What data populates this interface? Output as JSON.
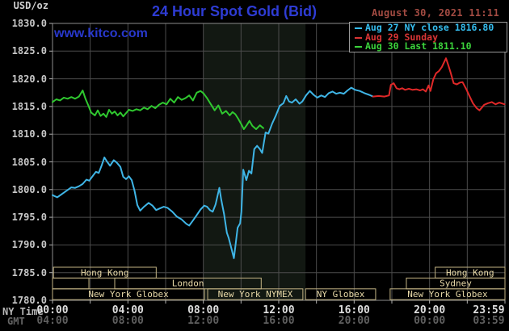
{
  "header": {
    "unit_label": "USD/oz",
    "title": "24 Hour Spot Gold (Bid)",
    "datetime": "August 30, 2021 11:11",
    "watermark": "www.kitco.com"
  },
  "legend": {
    "items": [
      {
        "label": "Aug 27 NY close 1816.80",
        "color": "#35bdee"
      },
      {
        "label": "Aug 29 Sunday",
        "color": "#d93535"
      },
      {
        "label": "Aug 30 Last 1811.10",
        "color": "#3bd23b"
      }
    ]
  },
  "axes": {
    "ny_time_label": "NY Time",
    "gmt_label": "GMT",
    "ny_ticks": [
      "00:00",
      "04:00",
      "08:00",
      "12:00",
      "16:00",
      "20:00",
      "23:59"
    ],
    "gmt_ticks": [
      "04:00",
      "08:00",
      "12:00",
      "16:00",
      "20:00",
      "00:00",
      "03:59"
    ],
    "tick_hours": [
      0,
      4,
      8,
      12,
      16,
      20,
      23.983
    ],
    "y_ticks": [
      "1830.0",
      "1825.0",
      "1820.0",
      "1815.0",
      "1810.0",
      "1805.0",
      "1800.0",
      "1795.0",
      "1790.0",
      "1785.0",
      "1780.0"
    ]
  },
  "sessions": {
    "border_color": "#c3b384",
    "text_color": "#e8d9a8",
    "boxes": [
      {
        "row": 0,
        "start": 0.05,
        "end": 5.5,
        "label": "Hong Kong"
      },
      {
        "row": 0,
        "start": 20.3,
        "end": 24,
        "label": "Hong Kong"
      },
      {
        "row": 1,
        "start": 0,
        "end": 1.93,
        "label": ""
      },
      {
        "row": 1,
        "start": 3.3,
        "end": 11.07,
        "label": "London"
      },
      {
        "row": 1,
        "start": 18.77,
        "end": 24,
        "label": "Sydney"
      },
      {
        "row": 2,
        "start": 0,
        "end": 8.06,
        "label": "New York Globex"
      },
      {
        "row": 2,
        "start": 8.23,
        "end": 13.28,
        "label": "New York NYMEX"
      },
      {
        "row": 2,
        "start": 13.42,
        "end": 17.14,
        "label": "NY Globex"
      },
      {
        "row": 2,
        "start": 17.91,
        "end": 24,
        "label": "New York Globex"
      }
    ]
  },
  "colors": {
    "background": "#000000",
    "grid": "#4c4c4c",
    "frame": "#8c8c8c",
    "tick": "#b0b0b0",
    "band": "#121812"
  },
  "chart_data": {
    "type": "line",
    "title": "24 Hour Spot Gold (Bid)",
    "xlabel": "NY Time (hours 00:00-23:59)",
    "ylabel": "USD/oz",
    "ylim": [
      1780,
      1830
    ],
    "x_range_hours": [
      0,
      24
    ],
    "grid": true,
    "gridline_every": {
      "x_hours": 2,
      "y_usd": 5
    },
    "legend_position": "top-right",
    "shaded_band_hours": [
      8.0,
      13.42
    ],
    "series": [
      {
        "name": "Aug 27 NY close 1816.80",
        "color": "#3fb5e6",
        "points": [
          [
            0,
            1799.0
          ],
          [
            0.25,
            1798.6
          ],
          [
            0.5,
            1799.2
          ],
          [
            0.75,
            1799.8
          ],
          [
            1,
            1800.4
          ],
          [
            1.2,
            1800.3
          ],
          [
            1.4,
            1800.6
          ],
          [
            1.6,
            1801.0
          ],
          [
            1.8,
            1801.8
          ],
          [
            1.95,
            1801.6
          ],
          [
            2.1,
            1802.3
          ],
          [
            2.3,
            1803.2
          ],
          [
            2.45,
            1803.0
          ],
          [
            2.6,
            1804.3
          ],
          [
            2.75,
            1805.8
          ],
          [
            2.9,
            1805.0
          ],
          [
            3.05,
            1804.3
          ],
          [
            3.25,
            1805.3
          ],
          [
            3.4,
            1804.9
          ],
          [
            3.6,
            1804.1
          ],
          [
            3.75,
            1802.3
          ],
          [
            3.9,
            1801.9
          ],
          [
            4.05,
            1802.4
          ],
          [
            4.2,
            1801.7
          ],
          [
            4.35,
            1799.8
          ],
          [
            4.5,
            1797.2
          ],
          [
            4.65,
            1796.2
          ],
          [
            4.85,
            1796.9
          ],
          [
            5.1,
            1797.6
          ],
          [
            5.3,
            1797.1
          ],
          [
            5.5,
            1796.3
          ],
          [
            5.7,
            1796.6
          ],
          [
            5.9,
            1796.9
          ],
          [
            6.1,
            1796.7
          ],
          [
            6.35,
            1796.0
          ],
          [
            6.6,
            1795.1
          ],
          [
            6.85,
            1794.6
          ],
          [
            7.1,
            1793.8
          ],
          [
            7.25,
            1793.5
          ],
          [
            7.45,
            1794.4
          ],
          [
            7.65,
            1795.4
          ],
          [
            7.85,
            1796.4
          ],
          [
            8.05,
            1797.1
          ],
          [
            8.2,
            1796.9
          ],
          [
            8.35,
            1796.3
          ],
          [
            8.5,
            1796.0
          ],
          [
            8.65,
            1797.3
          ],
          [
            8.85,
            1800.3
          ],
          [
            8.95,
            1798.2
          ],
          [
            9.1,
            1795.6
          ],
          [
            9.25,
            1792.2
          ],
          [
            9.35,
            1791.2
          ],
          [
            9.5,
            1789.2
          ],
          [
            9.62,
            1787.6
          ],
          [
            9.72,
            1790.3
          ],
          [
            9.82,
            1793.1
          ],
          [
            9.95,
            1793.9
          ],
          [
            10.02,
            1796.0
          ],
          [
            10.12,
            1803.6
          ],
          [
            10.28,
            1801.7
          ],
          [
            10.42,
            1803.4
          ],
          [
            10.55,
            1802.9
          ],
          [
            10.7,
            1807.3
          ],
          [
            10.85,
            1807.9
          ],
          [
            11,
            1807.3
          ],
          [
            11.12,
            1806.6
          ],
          [
            11.3,
            1810.3
          ],
          [
            11.45,
            1810.1
          ],
          [
            11.65,
            1811.9
          ],
          [
            11.85,
            1813.4
          ],
          [
            12.05,
            1815.1
          ],
          [
            12.25,
            1815.6
          ],
          [
            12.4,
            1816.9
          ],
          [
            12.55,
            1815.9
          ],
          [
            12.7,
            1815.7
          ],
          [
            12.9,
            1816.3
          ],
          [
            13.1,
            1815.5
          ],
          [
            13.25,
            1815.9
          ],
          [
            13.45,
            1817.0
          ],
          [
            13.65,
            1817.8
          ],
          [
            13.85,
            1817.1
          ],
          [
            14.05,
            1816.6
          ],
          [
            14.25,
            1817.0
          ],
          [
            14.45,
            1816.7
          ],
          [
            14.65,
            1817.4
          ],
          [
            14.85,
            1817.7
          ],
          [
            15.05,
            1817.3
          ],
          [
            15.25,
            1817.5
          ],
          [
            15.45,
            1817.3
          ],
          [
            15.65,
            1817.9
          ],
          [
            15.85,
            1818.4
          ],
          [
            16.05,
            1818.0
          ],
          [
            16.3,
            1817.8
          ],
          [
            16.55,
            1817.4
          ],
          [
            16.8,
            1817.1
          ],
          [
            17,
            1816.8
          ]
        ]
      },
      {
        "name": "Aug 29 Sunday",
        "color": "#e02828",
        "points": [
          [
            17,
            1816.8
          ],
          [
            17.3,
            1816.9
          ],
          [
            17.6,
            1816.8
          ],
          [
            17.85,
            1817.0
          ],
          [
            17.95,
            1818.9
          ],
          [
            18.1,
            1819.2
          ],
          [
            18.25,
            1818.3
          ],
          [
            18.4,
            1818.1
          ],
          [
            18.55,
            1818.3
          ],
          [
            18.7,
            1818.0
          ],
          [
            18.9,
            1818.2
          ],
          [
            19.1,
            1818.0
          ],
          [
            19.3,
            1818.1
          ],
          [
            19.5,
            1817.9
          ],
          [
            19.65,
            1818.1
          ],
          [
            19.8,
            1817.7
          ],
          [
            19.95,
            1818.8
          ],
          [
            20.05,
            1817.8
          ],
          [
            20.2,
            1819.9
          ],
          [
            20.35,
            1821.0
          ],
          [
            20.5,
            1821.4
          ],
          [
            20.65,
            1822.1
          ],
          [
            20.87,
            1823.7
          ],
          [
            21,
            1822.4
          ],
          [
            21.12,
            1821.1
          ],
          [
            21.28,
            1819.2
          ],
          [
            21.45,
            1819.0
          ],
          [
            21.6,
            1819.3
          ],
          [
            21.75,
            1819.4
          ],
          [
            21.95,
            1818.1
          ],
          [
            22.1,
            1817.0
          ],
          [
            22.3,
            1815.6
          ],
          [
            22.5,
            1814.7
          ],
          [
            22.65,
            1814.3
          ],
          [
            22.9,
            1815.3
          ],
          [
            23.1,
            1815.6
          ],
          [
            23.3,
            1815.8
          ],
          [
            23.5,
            1815.4
          ],
          [
            23.7,
            1815.7
          ],
          [
            23.98,
            1815.4
          ]
        ]
      },
      {
        "name": "Aug 30 Last 1811.10",
        "color": "#2fc82f",
        "points": [
          [
            0,
            1815.8
          ],
          [
            0.2,
            1816.3
          ],
          [
            0.4,
            1816.1
          ],
          [
            0.6,
            1816.6
          ],
          [
            0.8,
            1816.4
          ],
          [
            1,
            1816.7
          ],
          [
            1.2,
            1816.4
          ],
          [
            1.4,
            1816.8
          ],
          [
            1.6,
            1817.9
          ],
          [
            1.75,
            1816.4
          ],
          [
            1.9,
            1815.2
          ],
          [
            2.05,
            1813.9
          ],
          [
            2.25,
            1813.4
          ],
          [
            2.4,
            1814.3
          ],
          [
            2.55,
            1813.3
          ],
          [
            2.7,
            1813.7
          ],
          [
            2.85,
            1813.1
          ],
          [
            3,
            1814.4
          ],
          [
            3.15,
            1813.7
          ],
          [
            3.3,
            1814.1
          ],
          [
            3.45,
            1813.4
          ],
          [
            3.6,
            1813.9
          ],
          [
            3.75,
            1813.2
          ],
          [
            3.9,
            1813.8
          ],
          [
            4.05,
            1814.4
          ],
          [
            4.25,
            1814.2
          ],
          [
            4.45,
            1814.5
          ],
          [
            4.65,
            1814.3
          ],
          [
            4.85,
            1814.8
          ],
          [
            5.05,
            1814.5
          ],
          [
            5.25,
            1815.1
          ],
          [
            5.45,
            1814.7
          ],
          [
            5.65,
            1815.3
          ],
          [
            5.85,
            1815.7
          ],
          [
            6.05,
            1815.4
          ],
          [
            6.25,
            1816.4
          ],
          [
            6.45,
            1815.7
          ],
          [
            6.65,
            1816.7
          ],
          [
            6.85,
            1816.2
          ],
          [
            7.05,
            1816.5
          ],
          [
            7.25,
            1817.0
          ],
          [
            7.45,
            1816.1
          ],
          [
            7.65,
            1817.5
          ],
          [
            7.85,
            1817.8
          ],
          [
            8,
            1817.4
          ],
          [
            8.2,
            1816.5
          ],
          [
            8.4,
            1815.4
          ],
          [
            8.6,
            1814.3
          ],
          [
            8.8,
            1815.2
          ],
          [
            9,
            1813.7
          ],
          [
            9.2,
            1814.2
          ],
          [
            9.4,
            1813.4
          ],
          [
            9.55,
            1814.0
          ],
          [
            9.7,
            1813.6
          ],
          [
            9.85,
            1812.8
          ],
          [
            10,
            1811.9
          ],
          [
            10.15,
            1810.9
          ],
          [
            10.3,
            1811.6
          ],
          [
            10.45,
            1812.4
          ],
          [
            10.6,
            1811.5
          ],
          [
            10.8,
            1810.9
          ],
          [
            11,
            1811.6
          ],
          [
            11.18,
            1811.1
          ]
        ]
      }
    ]
  }
}
